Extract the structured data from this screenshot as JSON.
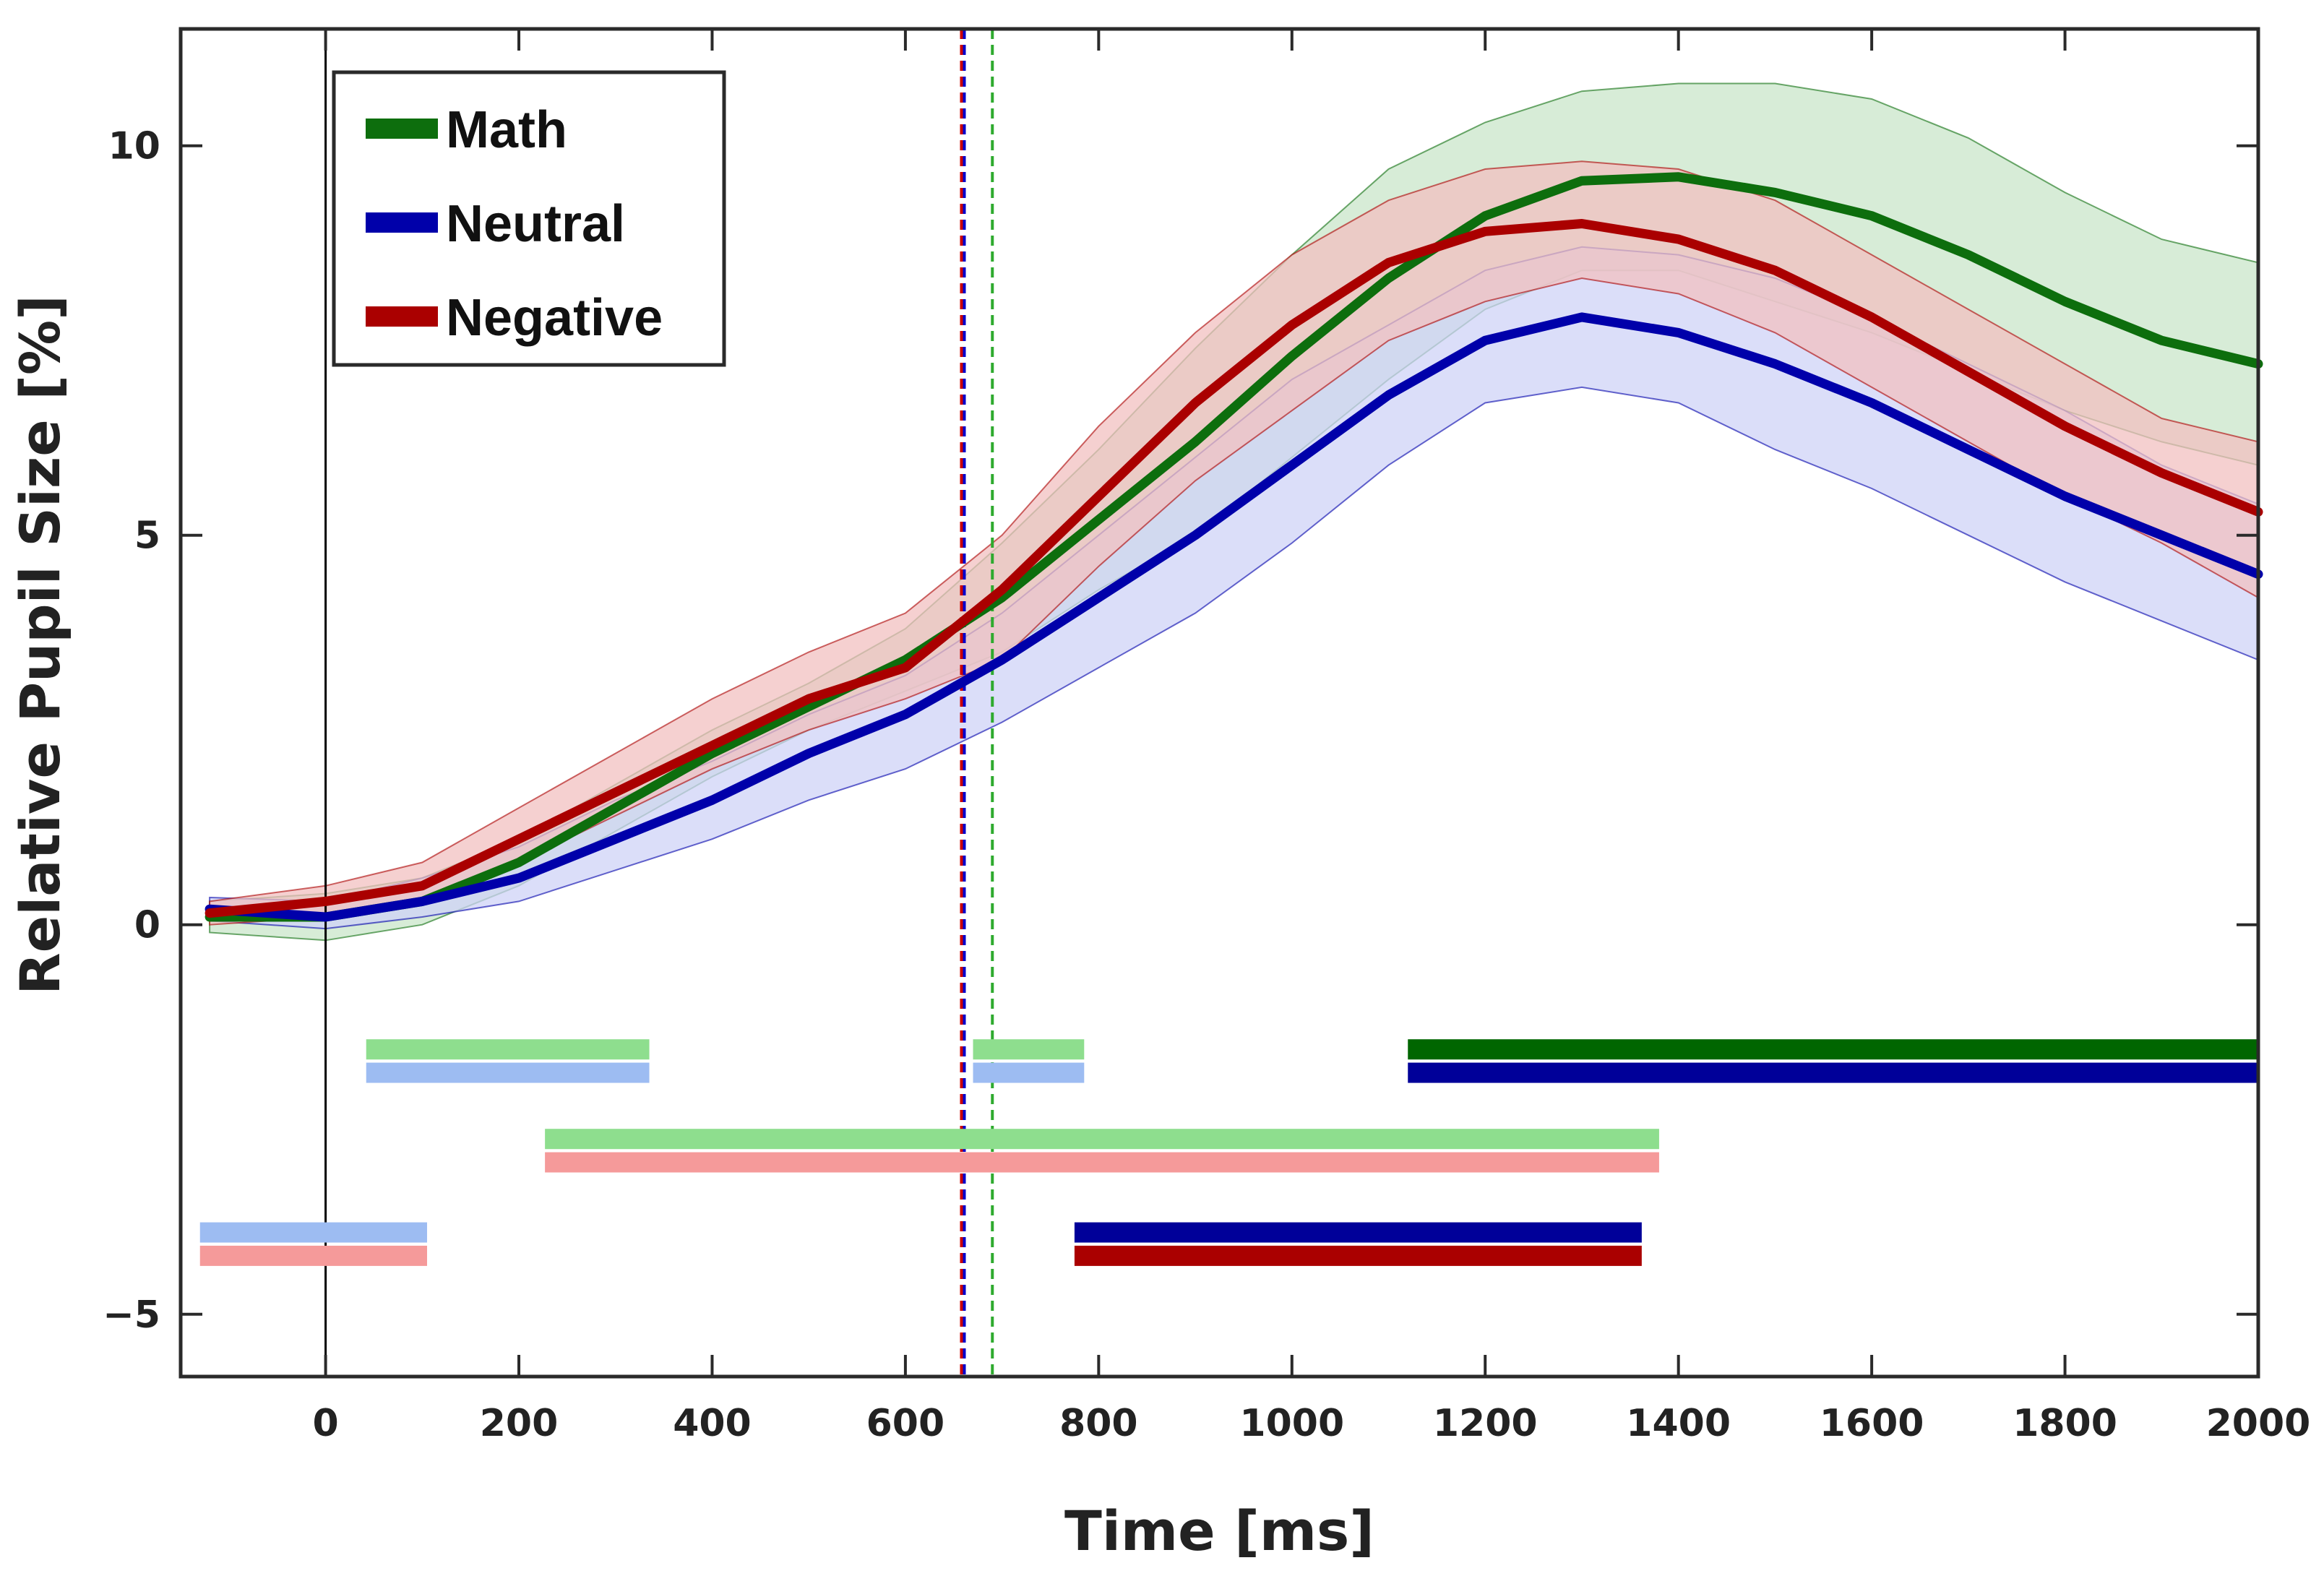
{
  "chart_data": {
    "type": "line",
    "title": "",
    "xlabel": "Time [ms]",
    "ylabel": "Relative Pupil Size [%]",
    "xlim": [
      -150,
      2000
    ],
    "ylim": [
      -5.8,
      11.5
    ],
    "x_ticks": [
      0,
      200,
      400,
      600,
      800,
      1000,
      1200,
      1400,
      1600,
      1800,
      2000
    ],
    "y_ticks": [
      -5,
      0,
      5,
      10
    ],
    "x_tick_labels": [
      "0",
      "200",
      "400",
      "600",
      "800",
      "1000",
      "1200",
      "1400",
      "1600",
      "1800",
      "2000"
    ],
    "y_tick_labels": [
      "−5",
      "0",
      "5",
      "10"
    ],
    "grid": false,
    "legend_position": "top-left",
    "x": [
      -120,
      0,
      100,
      200,
      300,
      400,
      500,
      600,
      700,
      800,
      900,
      1000,
      1100,
      1200,
      1300,
      1400,
      1500,
      1600,
      1700,
      1800,
      1900,
      2000
    ],
    "series": [
      {
        "name": "Math",
        "color": "#0d6e0d",
        "band_color": "#c9e6c9",
        "values": [
          0.1,
          0.1,
          0.3,
          0.8,
          1.5,
          2.2,
          2.8,
          3.4,
          4.2,
          5.2,
          6.2,
          7.3,
          8.3,
          9.1,
          9.55,
          9.6,
          9.4,
          9.1,
          8.6,
          8.0,
          7.5,
          7.2
        ],
        "upper": [
          0.3,
          0.4,
          0.6,
          1.1,
          1.8,
          2.5,
          3.1,
          3.8,
          4.9,
          6.1,
          7.4,
          8.6,
          9.7,
          10.3,
          10.7,
          10.8,
          10.8,
          10.6,
          10.1,
          9.4,
          8.8,
          8.5
        ],
        "lower": [
          -0.1,
          -0.2,
          0.0,
          0.5,
          1.2,
          1.9,
          2.5,
          3.0,
          3.5,
          4.3,
          5.0,
          6.0,
          7.0,
          7.9,
          8.4,
          8.4,
          8.0,
          7.6,
          7.1,
          6.6,
          6.2,
          5.9
        ]
      },
      {
        "name": "Neutral",
        "color": "#0000aa",
        "band_color": "#cfd3f7",
        "values": [
          0.2,
          0.1,
          0.3,
          0.6,
          1.1,
          1.6,
          2.2,
          2.7,
          3.4,
          4.2,
          5.0,
          5.9,
          6.8,
          7.5,
          7.8,
          7.6,
          7.2,
          6.7,
          6.1,
          5.5,
          5.0,
          4.5
        ],
        "upper": [
          0.35,
          0.3,
          0.6,
          1.0,
          1.6,
          2.1,
          2.7,
          3.2,
          4.0,
          5.0,
          6.0,
          7.0,
          7.7,
          8.4,
          8.7,
          8.6,
          8.3,
          7.8,
          7.2,
          6.6,
          5.9,
          5.4
        ],
        "lower": [
          0.05,
          -0.05,
          0.1,
          0.3,
          0.7,
          1.1,
          1.6,
          2.0,
          2.6,
          3.3,
          4.0,
          4.9,
          5.9,
          6.7,
          6.9,
          6.7,
          6.1,
          5.6,
          5.0,
          4.4,
          3.9,
          3.4
        ]
      },
      {
        "name": "Negative",
        "color": "#aa0000",
        "band_color": "#f2c0c0",
        "values": [
          0.15,
          0.3,
          0.5,
          1.1,
          1.7,
          2.3,
          2.9,
          3.3,
          4.3,
          5.5,
          6.7,
          7.7,
          8.5,
          8.9,
          9.0,
          8.8,
          8.4,
          7.8,
          7.1,
          6.4,
          5.8,
          5.3
        ],
        "upper": [
          0.3,
          0.5,
          0.8,
          1.5,
          2.2,
          2.9,
          3.5,
          4.0,
          5.0,
          6.4,
          7.6,
          8.6,
          9.3,
          9.7,
          9.8,
          9.7,
          9.3,
          8.6,
          7.9,
          7.2,
          6.5,
          6.2
        ],
        "lower": [
          0.0,
          0.1,
          0.3,
          0.8,
          1.4,
          2.0,
          2.5,
          2.9,
          3.4,
          4.6,
          5.7,
          6.6,
          7.5,
          8.0,
          8.3,
          8.1,
          7.6,
          6.9,
          6.2,
          5.5,
          4.9,
          4.2
        ]
      }
    ],
    "vertical_markers": [
      {
        "x": 0,
        "color": "#000000",
        "style": "solid"
      },
      {
        "x": 658,
        "color": "#cc0000",
        "style": "dashed"
      },
      {
        "x": 661,
        "color": "#0000cc",
        "style": "dashed"
      },
      {
        "x": 690,
        "color": "#2eaa2e",
        "style": "dashed"
      }
    ],
    "significance_bars": [
      {
        "x_start": 42,
        "x_end": 335,
        "y": -1.6,
        "color": "#8ede8e"
      },
      {
        "x_start": 42,
        "x_end": 335,
        "y": -1.9,
        "color": "#9dbcf2"
      },
      {
        "x_start": 670,
        "x_end": 785,
        "y": -1.6,
        "color": "#8ede8e"
      },
      {
        "x_start": 670,
        "x_end": 785,
        "y": -1.9,
        "color": "#9dbcf2"
      },
      {
        "x_start": 1120,
        "x_end": 2010,
        "y": -1.6,
        "color": "#006600"
      },
      {
        "x_start": 1120,
        "x_end": 2010,
        "y": -1.9,
        "color": "#000099"
      },
      {
        "x_start": 227,
        "x_end": 1380,
        "y": -2.75,
        "color": "#8ede8e"
      },
      {
        "x_start": 227,
        "x_end": 1380,
        "y": -3.05,
        "color": "#f59a9a"
      },
      {
        "x_start": -130,
        "x_end": 105,
        "y": -3.95,
        "color": "#9dbcf2"
      },
      {
        "x_start": -130,
        "x_end": 105,
        "y": -4.25,
        "color": "#f59a9a"
      },
      {
        "x_start": 775,
        "x_end": 1362,
        "y": -3.95,
        "color": "#000099"
      },
      {
        "x_start": 775,
        "x_end": 1362,
        "y": -4.25,
        "color": "#aa0000"
      }
    ]
  }
}
